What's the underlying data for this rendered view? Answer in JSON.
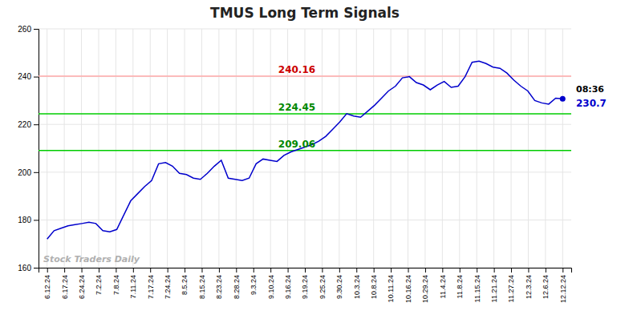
{
  "chart_data": {
    "type": "line",
    "title": "TMUS Long Term Signals",
    "grid": true,
    "x": [
      0,
      0.405405405405405,
      0.810810810810811,
      1.216216216216216,
      1.621621621621622,
      2.027027027027027,
      2.432432432432432,
      2.837837837837838,
      3.243243243243243,
      3.648648648648649,
      4.054054054054054,
      4.459459459459459,
      4.864864864864865,
      5.27027027027027,
      5.675675675675676,
      6.081081081081081,
      6.486486486486486,
      6.891891891891892,
      7.297297297297297,
      7.702702702702703,
      8.108108108108109,
      8.513513513513514,
      8.91891891891892,
      9.324324324324325,
      9.72972972972973,
      10.135135135135135,
      10.54054054054054,
      10.945945945945946,
      11.35135135135135,
      11.756756756756756,
      12.162162162162161,
      12.567567567567568,
      12.972972972972974,
      13.378378378378377,
      13.783783783783784,
      14.18918918918919,
      14.594594594594595,
      15,
      15.405405405405405,
      15.81081081081081,
      16.216216216216218,
      16.62162162162162,
      17.027027027027028,
      17.43243243243243,
      17.83783783783784,
      18.243243243243242,
      18.64864864864865,
      19.054054054054053,
      19.45945945945946,
      19.864864864864867,
      20.27027027027027,
      20.675675675675677,
      21.08108108108108,
      21.486486486486488,
      21.89189189189189,
      22.2972972972973,
      22.7027027027027,
      23.10810810810811,
      23.513513513513512,
      23.91891891891892,
      24.324324324324323,
      24.72972972972973,
      25.135135135135133,
      25.54054054054054,
      25.945945945945947,
      26.35135135135135,
      26.756756756756758,
      27.16216216216216,
      27.56756756756757,
      27.972972972972972,
      28.37837837837838,
      28.783783783783782,
      29.18918918918919,
      29.594594594594597,
      30
    ],
    "xlim": [
      -0.5,
      30.5
    ],
    "xticks": [
      {
        "value": 0,
        "label": "6.12.24"
      },
      {
        "value": 1,
        "label": "6.17.24"
      },
      {
        "value": 2,
        "label": "6.24.24"
      },
      {
        "value": 3,
        "label": "7.2.24"
      },
      {
        "value": 4,
        "label": "7.8.24"
      },
      {
        "value": 5,
        "label": "7.11.24"
      },
      {
        "value": 6,
        "label": "7.17.24"
      },
      {
        "value": 7,
        "label": "7.24.24"
      },
      {
        "value": 8,
        "label": "8.5.24"
      },
      {
        "value": 9,
        "label": "8.15.24"
      },
      {
        "value": 10,
        "label": "8.23.24"
      },
      {
        "value": 11,
        "label": "8.28.24"
      },
      {
        "value": 12,
        "label": "9.3.24"
      },
      {
        "value": 13,
        "label": "9.10.24"
      },
      {
        "value": 14,
        "label": "9.16.24"
      },
      {
        "value": 15,
        "label": "9.19.24"
      },
      {
        "value": 16,
        "label": "9.25.24"
      },
      {
        "value": 17,
        "label": "9.30.24"
      },
      {
        "value": 18,
        "label": "10.3.24"
      },
      {
        "value": 19,
        "label": "10.8.24"
      },
      {
        "value": 20,
        "label": "10.11.24"
      },
      {
        "value": 21,
        "label": "10.16.24"
      },
      {
        "value": 22,
        "label": "10.29.24"
      },
      {
        "value": 23,
        "label": "11.4.24"
      },
      {
        "value": 24,
        "label": "11.8.24"
      },
      {
        "value": 25,
        "label": "11.15.24"
      },
      {
        "value": 26,
        "label": "11.21.24"
      },
      {
        "value": 27,
        "label": "11.27.24"
      },
      {
        "value": 28,
        "label": "12.3.24"
      },
      {
        "value": 29,
        "label": "12.6.24"
      },
      {
        "value": 30,
        "label": "12.12.24"
      }
    ],
    "ylim": [
      160,
      260
    ],
    "yticks": [
      160,
      180,
      200,
      220,
      240,
      260
    ],
    "series": [
      {
        "color": "#0000cc",
        "values": [
          172.0,
          175.5,
          176.5,
          177.5,
          178.0,
          178.5,
          179.0,
          178.5,
          175.5,
          175.0,
          176.0,
          182.0,
          188.0,
          191.0,
          194.0,
          196.5,
          203.5,
          204.0,
          202.5,
          199.5,
          199.0,
          197.5,
          197.0,
          199.5,
          202.5,
          205.0,
          197.5,
          197.0,
          196.5,
          197.5,
          203.5,
          205.5,
          205.0,
          204.5,
          207.0,
          208.5,
          209.5,
          210.5,
          211.5,
          213.0,
          215.0,
          218.0,
          221.0,
          224.5,
          223.5,
          223.0,
          225.5,
          228.0,
          231.0,
          234.0,
          236.0,
          239.5,
          240.0,
          237.5,
          236.5,
          234.5,
          236.5,
          238.0,
          235.5,
          236.0,
          240.0,
          246.0,
          246.5,
          245.5,
          244.0,
          243.5,
          241.5,
          238.5,
          236.0,
          234.0,
          230.0,
          229.0,
          228.5,
          231.0,
          230.7
        ]
      }
    ],
    "hlines": [
      {
        "value": 240.16,
        "label": "240.16",
        "color": "#ffaaaa",
        "label_color": "#cc0000"
      },
      {
        "value": 224.45,
        "label": "224.45",
        "color": "#00cc00",
        "label_color": "#008800"
      },
      {
        "value": 209.06,
        "label": "209.06",
        "color": "#00cc00",
        "label_color": "#008800"
      }
    ],
    "last_label": {
      "time": "08:36",
      "price": "230.7",
      "value": 230.7
    },
    "watermark": {
      "text": "Stock Traders Daily",
      "color": "#b0b0b0"
    }
  }
}
